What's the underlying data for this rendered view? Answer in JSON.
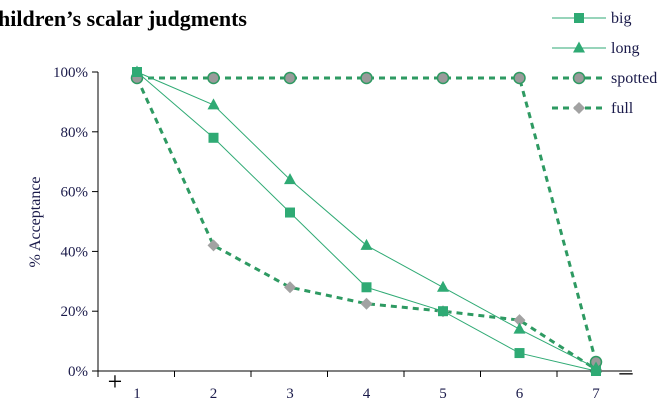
{
  "chart_data": {
    "type": "line",
    "title": "hildren’s scalar judgments",
    "xlabel": "",
    "ylabel": "% Acceptance",
    "x": [
      1,
      2,
      3,
      4,
      5,
      6,
      7
    ],
    "xticks": [
      "1",
      "2",
      "3",
      "4",
      "5",
      "6",
      "7"
    ],
    "yticks": [
      "0%",
      "20%",
      "40%",
      "60%",
      "80%",
      "100%"
    ],
    "ylim": [
      0,
      100
    ],
    "left_mark": "+",
    "right_mark": "–",
    "legend_position": "top-right",
    "grid": false,
    "series": [
      {
        "name": "big",
        "values": [
          100,
          78,
          53,
          28,
          20,
          6,
          0
        ],
        "color": "#2faa74",
        "marker": "square",
        "dashed": false
      },
      {
        "name": "long",
        "values": [
          100,
          89,
          64,
          42,
          28,
          14,
          1
        ],
        "color": "#2faa74",
        "marker": "triangle",
        "dashed": false
      },
      {
        "name": "spotted",
        "values": [
          98,
          98,
          98,
          98,
          98,
          98,
          3
        ],
        "color": "#2e9a62",
        "marker": "circle",
        "dashed": true
      },
      {
        "name": "full",
        "values": [
          98,
          42,
          28,
          22.5,
          20,
          17,
          0.5
        ],
        "color": "#2e9a62",
        "marker": "diamond",
        "dashed": true
      }
    ]
  }
}
